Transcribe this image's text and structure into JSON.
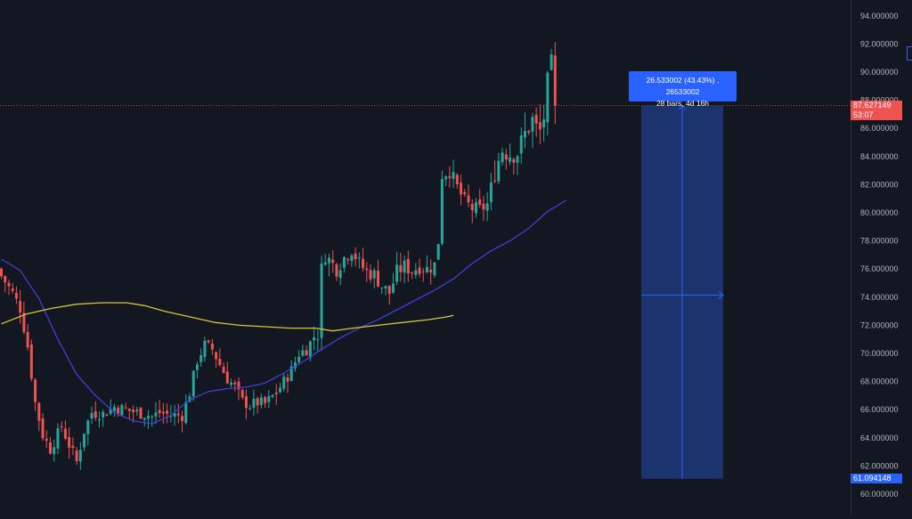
{
  "chart_data": {
    "type": "candlestick",
    "x_unit": "bars",
    "y_axis": {
      "range": [
        59.5,
        95.0
      ],
      "tick_labels": [
        "60.000000",
        "62.000000",
        "64.000000",
        "66.000000",
        "68.000000",
        "70.000000",
        "72.000000",
        "74.000000",
        "76.000000",
        "78.000000",
        "80.000000",
        "82.000000",
        "84.000000",
        "86.000000",
        "88.000000",
        "90.000000",
        "92.000000",
        "94.000000"
      ],
      "tick_values": [
        60,
        62,
        64,
        66,
        68,
        70,
        72,
        74,
        76,
        78,
        80,
        82,
        84,
        86,
        88,
        90,
        92,
        94
      ]
    },
    "current_price": {
      "label": "87.627149",
      "value": 87.627,
      "countdown": "53:07"
    },
    "measure_low": {
      "label": "61.094148",
      "value": 61.094
    },
    "measure": {
      "line1": "26.533002 (43.43%) , 26533002",
      "line2": "28 bars, 4d 16h",
      "from_price": 61.094,
      "to_price": 87.627
    },
    "colors": {
      "up": "#26a69a",
      "down": "#ef5350",
      "ma_fast": "#3f3fd6",
      "ma_slow": "#d8c43a",
      "measure_fill": "#1e3a7a",
      "measure_accent": "#2962ff"
    },
    "series": [
      {
        "name": "ma_fast",
        "points": [
          [
            0,
            76.7
          ],
          [
            15,
            75.9
          ],
          [
            30,
            73.9
          ],
          [
            45,
            71.0
          ],
          [
            60,
            68.5
          ],
          [
            75,
            67.0
          ],
          [
            90,
            65.8
          ],
          [
            105,
            65.2
          ],
          [
            120,
            65.0
          ],
          [
            135,
            65.6
          ],
          [
            150,
            66.7
          ],
          [
            165,
            67.3
          ],
          [
            180,
            67.5
          ],
          [
            195,
            67.6
          ],
          [
            210,
            67.9
          ],
          [
            225,
            68.6
          ],
          [
            240,
            69.4
          ],
          [
            255,
            70.3
          ],
          [
            270,
            71.1
          ],
          [
            285,
            71.8
          ],
          [
            300,
            72.4
          ],
          [
            315,
            73.1
          ],
          [
            330,
            73.8
          ],
          [
            345,
            74.5
          ],
          [
            360,
            75.3
          ],
          [
            375,
            76.4
          ],
          [
            390,
            77.3
          ],
          [
            405,
            78.0
          ],
          [
            420,
            78.9
          ],
          [
            435,
            80.1
          ],
          [
            450,
            80.9
          ]
        ]
      },
      {
        "name": "ma_slow",
        "points": [
          [
            0,
            72.1
          ],
          [
            20,
            72.8
          ],
          [
            40,
            73.2
          ],
          [
            60,
            73.5
          ],
          [
            80,
            73.6
          ],
          [
            100,
            73.6
          ],
          [
            114,
            73.4
          ],
          [
            130,
            73.0
          ],
          [
            150,
            72.6
          ],
          [
            170,
            72.2
          ],
          [
            190,
            72.0
          ],
          [
            210,
            71.9
          ],
          [
            230,
            71.8
          ],
          [
            250,
            71.8
          ],
          [
            264,
            71.6
          ],
          [
            280,
            71.8
          ],
          [
            300,
            72.0
          ],
          [
            320,
            72.2
          ],
          [
            340,
            72.4
          ],
          [
            355,
            72.6
          ],
          [
            360,
            72.7
          ]
        ]
      }
    ]
  }
}
